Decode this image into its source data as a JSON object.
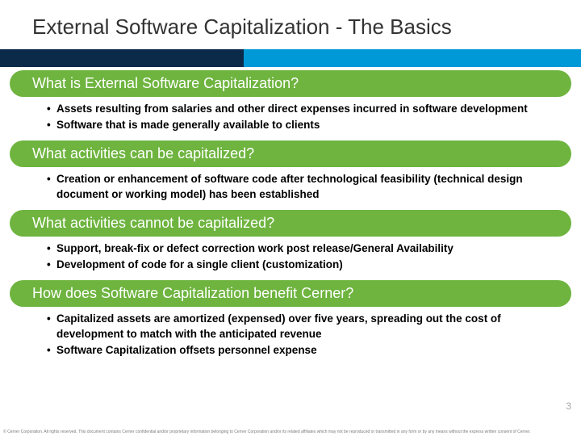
{
  "title": "External Software Capitalization - The Basics",
  "colors": {
    "accent_blue": "#0099d8",
    "accent_navy": "#0b2a4a",
    "header_green": "#6eb43f",
    "title_text": "#333333",
    "bullet_text": "#000000",
    "page_num": "#a6a6a6",
    "background": "#ffffff"
  },
  "typography": {
    "title_fontsize": 26,
    "header_fontsize": 18,
    "bullet_fontsize": 13.5,
    "bullet_weight": "bold"
  },
  "sections": [
    {
      "heading": "What is External Software Capitalization?",
      "bullets": [
        "Assets resulting from salaries and other direct expenses incurred in software development",
        "Software that is made generally available to clients"
      ]
    },
    {
      "heading": "What activities can be capitalized?",
      "bullets": [
        "Creation or enhancement of software code after technological feasibility (technical design document or working model) has been established"
      ]
    },
    {
      "heading": "What activities cannot be capitalized?",
      "bullets": [
        "Support, break-fix or defect correction work post release/General Availability",
        "Development of code for a single client (customization)"
      ]
    },
    {
      "heading": "How does Software Capitalization benefit Cerner?",
      "bullets": [
        "Capitalized assets are amortized (expensed) over five years, spreading out the cost of development to match with the anticipated revenue",
        "Software Capitalization offsets personnel expense"
      ]
    }
  ],
  "page_number": "3",
  "footer_text": "© Cerner Corporation. All rights reserved. This document contains Cerner confidential and/or proprietary information belonging to Cerner Corporation and/or its related affiliates which may not be reproduced or transmitted in any form or by any means without the express written consent of Cerner."
}
